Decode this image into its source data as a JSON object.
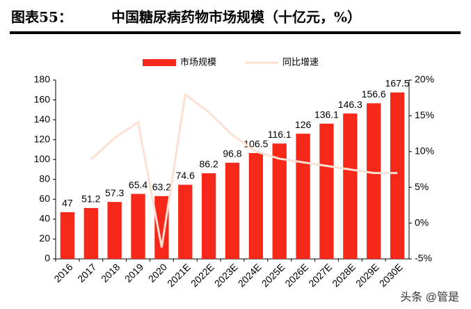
{
  "figure_label": "图表55：",
  "chart_data": {
    "type": "bar_line",
    "title": "中国糖尿病药物市场规模（十亿元，%）",
    "categories": [
      "2016",
      "2017",
      "2018",
      "2019",
      "2020",
      "2021E",
      "2022E",
      "2023E",
      "2024E",
      "2025E",
      "2026E",
      "2027E",
      "2028E",
      "2029E",
      "2030E"
    ],
    "series": [
      {
        "name": "市场规模",
        "color": "#f5281a",
        "type": "bar",
        "values": [
          47,
          51.2,
          57.3,
          65.4,
          63.2,
          74.6,
          86.2,
          96.8,
          106.5,
          116.1,
          126,
          136.1,
          146.3,
          156.6,
          167.5
        ]
      },
      {
        "name": "同比增速",
        "color": "#fce1d2",
        "type": "line",
        "axis": "y2",
        "values": [
          null,
          8.9,
          11.9,
          14.1,
          -3.4,
          18.0,
          15.5,
          12.3,
          10.0,
          9.0,
          8.5,
          8.0,
          7.5,
          7.0,
          7.0
        ]
      }
    ],
    "ylim": [
      0,
      180
    ],
    "yticks": [
      0,
      20,
      40,
      60,
      80,
      100,
      120,
      140,
      160,
      180
    ],
    "y2lim": [
      -5,
      20
    ],
    "y2ticks": [
      {
        "value": -5,
        "label": "-5%"
      },
      {
        "value": 0,
        "label": "0%"
      },
      {
        "value": 5,
        "label": "5%"
      },
      {
        "value": 10,
        "label": "10%"
      },
      {
        "value": 15,
        "label": "15%"
      },
      {
        "value": 20,
        "label": "20%"
      }
    ],
    "legend": "top"
  },
  "watermark": "头条 @管是"
}
